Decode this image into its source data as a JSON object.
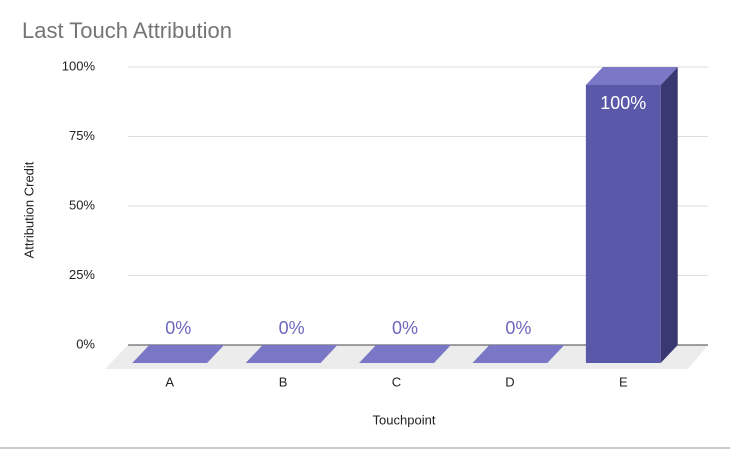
{
  "chart_data": {
    "type": "bar3d",
    "title": "Last Touch Attribution",
    "x_label": "Touchpoint",
    "y_label": "Attribution Credit",
    "categories": [
      "A",
      "B",
      "C",
      "D",
      "E"
    ],
    "values": [
      0,
      0,
      0,
      0,
      100
    ],
    "value_labels": [
      "0%",
      "0%",
      "0%",
      "0%",
      "100%"
    ],
    "color": "#5a58a8",
    "ylim": [
      0,
      100
    ],
    "yticks": [
      {
        "value": 0,
        "label": "0%"
      },
      {
        "value": 25,
        "label": "25%"
      },
      {
        "value": 50,
        "label": "50%"
      },
      {
        "value": 75,
        "label": "75%"
      },
      {
        "value": 100,
        "label": "100%"
      }
    ],
    "grid": true
  }
}
